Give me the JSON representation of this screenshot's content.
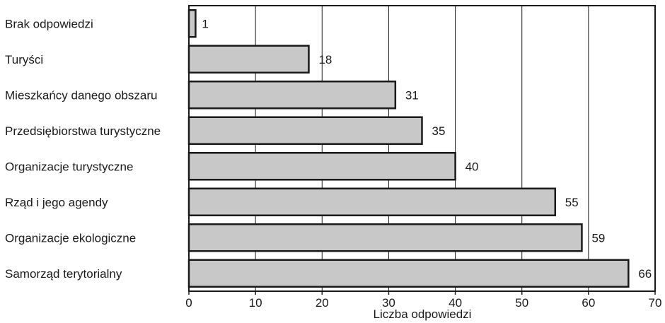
{
  "chart_data": {
    "type": "bar",
    "orientation": "horizontal",
    "categories": [
      "Brak odpowiedzi",
      "Turyści",
      "Mieszkańcy danego obszaru",
      "Przedsiębiorstwa turystyczne",
      "Organizacje turystyczne",
      "Rząd i jego agendy",
      "Organizacje ekologiczne",
      "Samorząd terytorialny"
    ],
    "values": [
      1,
      18,
      31,
      35,
      40,
      55,
      59,
      66
    ],
    "value_labels": [
      "1",
      "18",
      "31",
      "35",
      "40",
      "55",
      "59",
      "66"
    ],
    "xlabel": "Liczba odpowiedzi",
    "ylabel": "",
    "title": "",
    "xlim": [
      0,
      70
    ],
    "xticks": [
      0,
      10,
      20,
      30,
      40,
      50,
      60,
      70
    ],
    "xtick_labels": [
      "0",
      "10",
      "20",
      "30",
      "40",
      "50",
      "60",
      "70"
    ],
    "grid": "vertical",
    "legend": "none",
    "colors": {
      "bar_fill": "#c8c8c8",
      "bar_stroke": "#1a1a1a",
      "grid": "#1a1a1a",
      "frame": "#1a1a1a",
      "text": "#1a1a1a"
    }
  }
}
